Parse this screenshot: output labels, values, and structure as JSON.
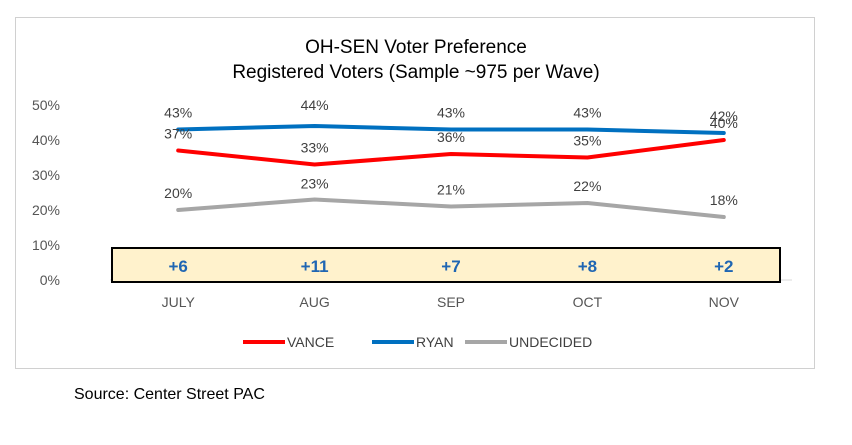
{
  "chart_data": {
    "type": "line",
    "title": [
      "OH-SEN Voter Preference",
      "Registered Voters (Sample ~975 per Wave)"
    ],
    "categories": [
      "JULY",
      "AUG",
      "SEP",
      "OCT",
      "NOV"
    ],
    "ylim": [
      0,
      50
    ],
    "yticks": [
      0,
      10,
      20,
      30,
      40,
      50
    ],
    "ytick_labels": [
      "0%",
      "10%",
      "20%",
      "30%",
      "40%",
      "50%"
    ],
    "series": [
      {
        "name": "VANCE",
        "color": "#ff0000",
        "values": [
          37,
          33,
          36,
          35,
          40
        ],
        "labels": [
          "37%",
          "33%",
          "36%",
          "35%",
          "40%"
        ]
      },
      {
        "name": "RYAN",
        "color": "#0070c0",
        "values": [
          43,
          44,
          43,
          43,
          42
        ],
        "labels": [
          "43%",
          "44%",
          "43%",
          "43%",
          "42%"
        ]
      },
      {
        "name": "UNDECIDED",
        "color": "#a6a6a6",
        "values": [
          20,
          23,
          21,
          22,
          18
        ],
        "labels": [
          "20%",
          "23%",
          "21%",
          "22%",
          "18%"
        ]
      }
    ],
    "margins": [
      "+6",
      "+11",
      "+7",
      "+8",
      "+2"
    ],
    "margin_box_color": "#fff2cc",
    "legend_position": "bottom"
  },
  "source": "Source:  Center Street PAC"
}
